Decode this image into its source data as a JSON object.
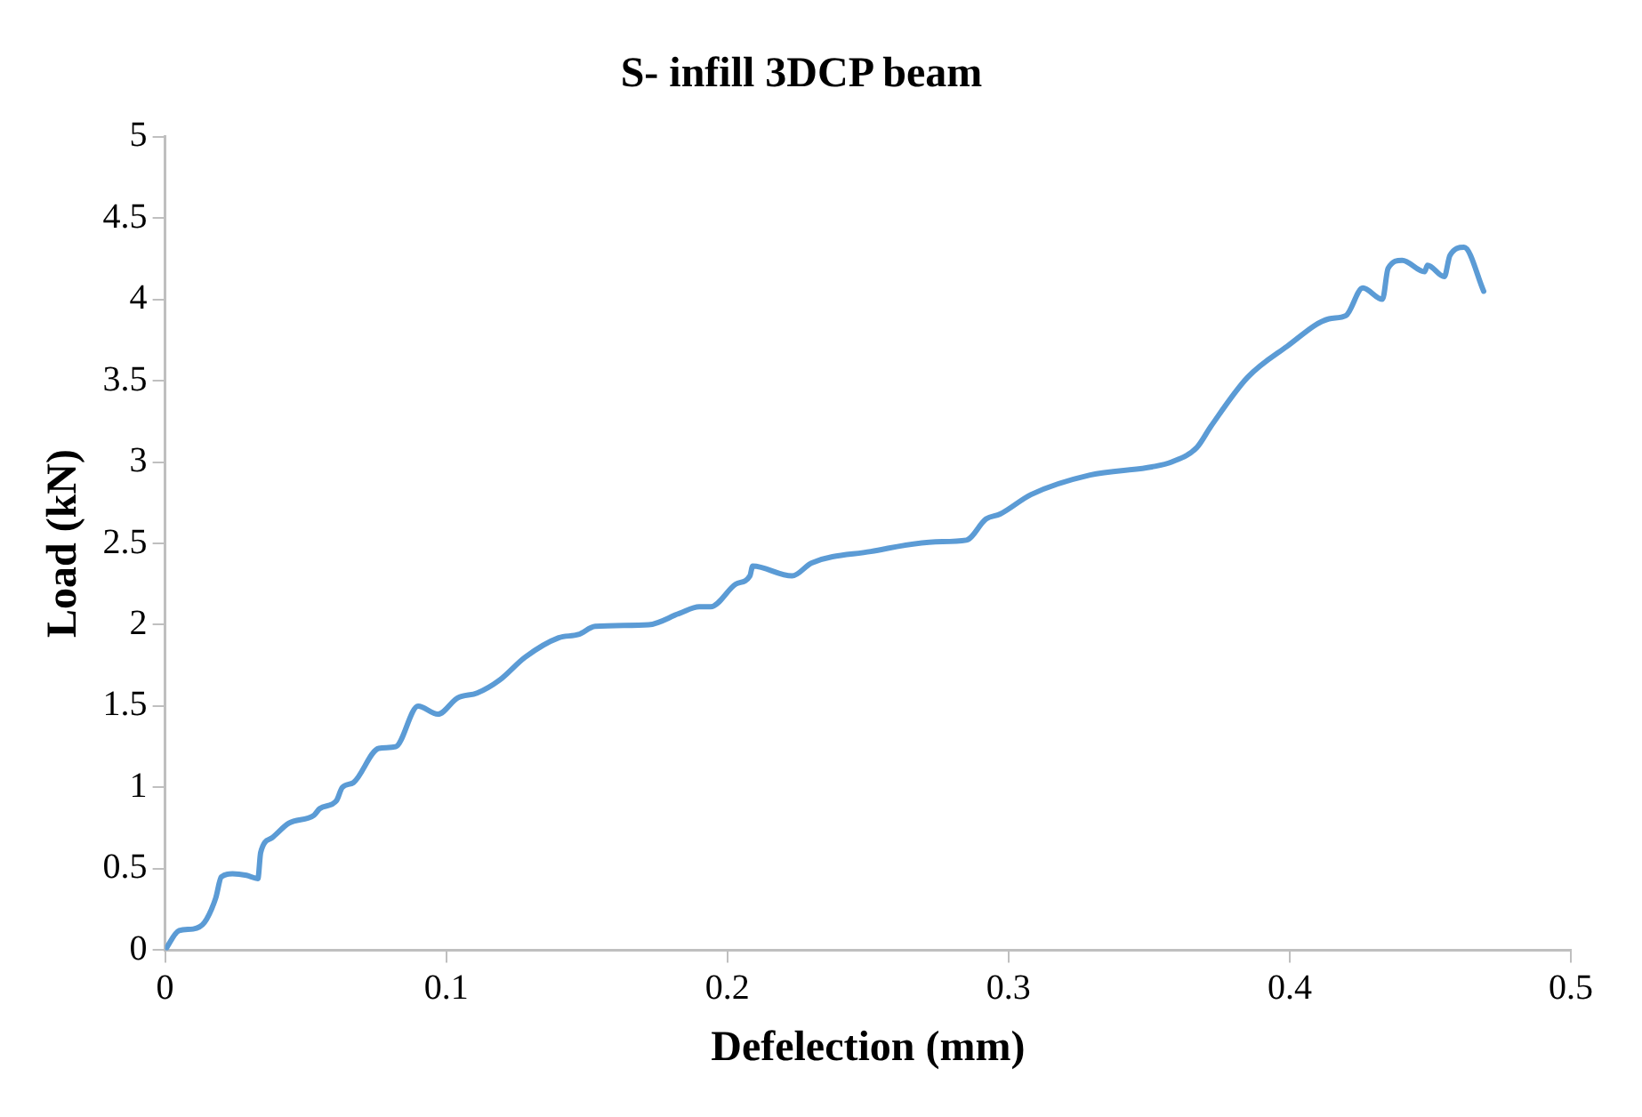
{
  "chart_data": {
    "type": "line",
    "title": "S- infill 3DCP beam",
    "xlabel": "Defelection (mm)",
    "ylabel": "Load (kN)",
    "xlim": [
      0,
      0.5
    ],
    "xticks": [
      0,
      0.1,
      0.2,
      0.3,
      0.4,
      0.5
    ],
    "ylim": [
      0,
      5
    ],
    "yticks": [
      0,
      0.5,
      1,
      1.5,
      2,
      2.5,
      3,
      3.5,
      4,
      4.5,
      5
    ],
    "grid": false,
    "legend": false,
    "marker": "none",
    "line_style": "solid",
    "series": [
      {
        "color": "#5b9bd5",
        "x": [
          0,
          0.005,
          0.01,
          0.014,
          0.018,
          0.02,
          0.024,
          0.029,
          0.033,
          0.034,
          0.038,
          0.044,
          0.053,
          0.055,
          0.061,
          0.063,
          0.067,
          0.076,
          0.082,
          0.09,
          0.097,
          0.104,
          0.111,
          0.119,
          0.128,
          0.14,
          0.147,
          0.153,
          0.172,
          0.183,
          0.19,
          0.194,
          0.203,
          0.208,
          0.209,
          0.223,
          0.23,
          0.251,
          0.274,
          0.285,
          0.292,
          0.297,
          0.308,
          0.329,
          0.351,
          0.358,
          0.367,
          0.372,
          0.385,
          0.399,
          0.414,
          0.42,
          0.426,
          0.433,
          0.435,
          0.44,
          0.448,
          0.449,
          0.455,
          0.457,
          0.462,
          0.469
        ],
        "values": [
          0,
          0.12,
          0.13,
          0.17,
          0.32,
          0.45,
          0.47,
          0.46,
          0.44,
          0.6,
          0.69,
          0.78,
          0.83,
          0.87,
          0.92,
          1.0,
          1.03,
          1.24,
          1.25,
          1.5,
          1.45,
          1.55,
          1.58,
          1.66,
          1.8,
          1.92,
          1.94,
          1.99,
          2.0,
          2.07,
          2.11,
          2.11,
          2.25,
          2.3,
          2.36,
          2.3,
          2.38,
          2.45,
          2.51,
          2.52,
          2.65,
          2.68,
          2.8,
          2.92,
          2.97,
          3.0,
          3.09,
          3.22,
          3.52,
          3.71,
          3.88,
          3.9,
          4.07,
          4.0,
          4.19,
          4.24,
          4.17,
          4.21,
          4.14,
          4.27,
          4.32,
          4.05
        ]
      }
    ]
  }
}
